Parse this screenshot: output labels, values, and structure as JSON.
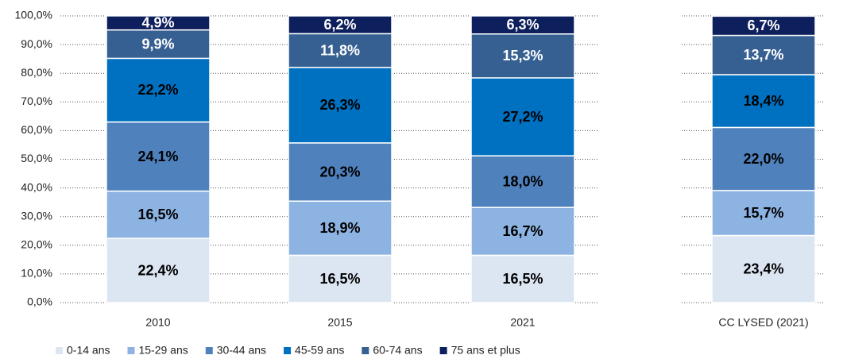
{
  "chart_data": {
    "type": "stacked_bar",
    "categories": [
      "2010",
      "2015",
      "2021",
      "CC LYSED (2021)"
    ],
    "series": [
      {
        "name": "0-14 ans",
        "color": "#dce6f2",
        "label_color": "#000000",
        "values": [
          22.4,
          16.5,
          16.5,
          23.4
        ],
        "value_labels": [
          "22,4%",
          "16,5%",
          "16,5%",
          "23,4%"
        ]
      },
      {
        "name": "15-29 ans",
        "color": "#8db3e2",
        "label_color": "#000000",
        "values": [
          16.5,
          18.9,
          16.7,
          15.7
        ],
        "value_labels": [
          "16,5%",
          "18,9%",
          "16,7%",
          "15,7%"
        ]
      },
      {
        "name": "30-44 ans",
        "color": "#4f81bd",
        "label_color": "#000000",
        "values": [
          24.1,
          20.3,
          18.0,
          22.0
        ],
        "value_labels": [
          "24,1%",
          "20,3%",
          "18,0%",
          "22,0%"
        ]
      },
      {
        "name": "45-59 ans",
        "color": "#0070c0",
        "label_color": "#000000",
        "values": [
          22.2,
          26.3,
          27.2,
          18.4
        ],
        "value_labels": [
          "22,2%",
          "26,3%",
          "27,2%",
          "18,4%"
        ]
      },
      {
        "name": "60-74 ans",
        "color": "#376092",
        "label_color": "#ffffff",
        "values": [
          9.9,
          11.8,
          15.3,
          13.7
        ],
        "value_labels": [
          "9,9%",
          "11,8%",
          "15,3%",
          "13,7%"
        ]
      },
      {
        "name": "75 ans et plus",
        "color": "#0d1f5c",
        "label_color": "#ffffff",
        "values": [
          4.9,
          6.2,
          6.3,
          6.7
        ],
        "value_labels": [
          "4,9%",
          "6,2%",
          "6,3%",
          "6,7%"
        ]
      }
    ],
    "ylim": [
      0,
      100
    ],
    "yticks": [
      {
        "value": 0,
        "label": "0,0%"
      },
      {
        "value": 10,
        "label": "10,0%"
      },
      {
        "value": 20,
        "label": "20,0%"
      },
      {
        "value": 30,
        "label": "30,0%"
      },
      {
        "value": 40,
        "label": "40,0%"
      },
      {
        "value": 50,
        "label": "50,0%"
      },
      {
        "value": 60,
        "label": "60,0%"
      },
      {
        "value": 70,
        "label": "70,0%"
      },
      {
        "value": 80,
        "label": "80,0%"
      },
      {
        "value": 90,
        "label": "90,0%"
      },
      {
        "value": 100,
        "label": "100,0%"
      }
    ],
    "grid": true,
    "legend": "bottom"
  }
}
